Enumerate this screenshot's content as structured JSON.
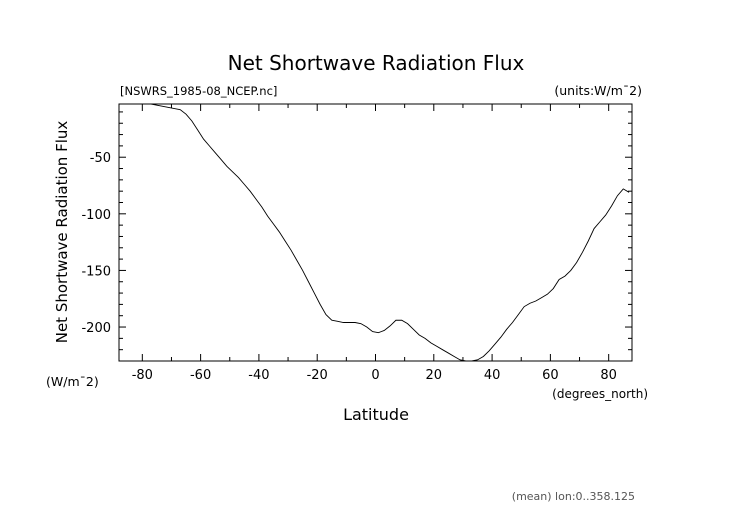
{
  "chart_data": {
    "type": "line",
    "title": "Net Shortwave Radiation Flux",
    "file_label": "[NSWRS_1985-08_NCEP.nc]",
    "units_label": "(units:W/m¯2)",
    "ylabel": "Net Shortwave Radiation Flux",
    "ylabel_units": "(W/m¯2)",
    "xlabel": "Latitude",
    "xlabel_units": "(degrees_north)",
    "footer": "(mean) lon:0..358.125",
    "xlim": [
      -88,
      88
    ],
    "ylim": [
      -230,
      -3
    ],
    "xticks": [
      -80,
      -60,
      -40,
      -20,
      0,
      20,
      40,
      60,
      80
    ],
    "yticks": [
      -50,
      -100,
      -150,
      -200
    ],
    "grid": false,
    "series": [
      {
        "x": [
          -77,
          -75,
          -73,
          -71,
          -69,
          -67,
          -65,
          -63,
          -61,
          -59,
          -57,
          -55,
          -53,
          -51,
          -49,
          -47,
          -45,
          -43,
          -41,
          -39,
          -37,
          -35,
          -33,
          -31,
          -29,
          -27,
          -25,
          -23,
          -21,
          -19,
          -17,
          -15,
          -13,
          -11,
          -9,
          -7,
          -5,
          -3,
          -1,
          1,
          3,
          5,
          7,
          9,
          11,
          13,
          15,
          17,
          19,
          21,
          23,
          25,
          27,
          29,
          31,
          33,
          35,
          37,
          39,
          41,
          43,
          45,
          47,
          49,
          51,
          53,
          55,
          57,
          59,
          61,
          63,
          65,
          67,
          69,
          71,
          73,
          75,
          77,
          79,
          81,
          83,
          85,
          87
        ],
        "y": [
          -3,
          -4,
          -5,
          -6,
          -7,
          -8,
          -12,
          -18,
          -26,
          -34,
          -40,
          -46,
          -52,
          -58,
          -63,
          -68,
          -74,
          -80,
          -87,
          -94,
          -102,
          -109,
          -116,
          -124,
          -132,
          -141,
          -150,
          -160,
          -170,
          -180,
          -189,
          -194,
          -195,
          -196,
          -196,
          -196,
          -197,
          -200,
          -204,
          -205,
          -203,
          -199,
          -194,
          -194,
          -197,
          -202,
          -207,
          -210,
          -214,
          -217,
          -220,
          -223,
          -226,
          -229,
          -230,
          -230,
          -229,
          -226,
          -221,
          -215,
          -209,
          -202,
          -196,
          -189,
          -182,
          -179,
          -177,
          -174,
          -171,
          -166,
          -158,
          -155,
          -150,
          -143,
          -134,
          -124,
          -113,
          -107,
          -101,
          -93,
          -84,
          -78,
          -81
        ]
      }
    ]
  }
}
